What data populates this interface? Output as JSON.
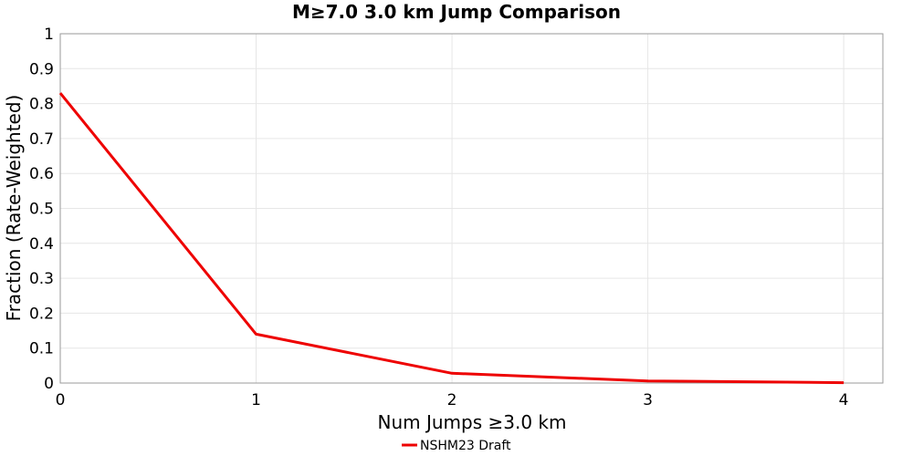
{
  "chart_data": {
    "type": "line",
    "title": "M≥7.0 3.0 km Jump Comparison",
    "xlabel": "Num Jumps ≥3.0 km",
    "ylabel": "Fraction (Rate-Weighted)",
    "xlim": [
      0,
      4.2
    ],
    "ylim": [
      0,
      1
    ],
    "x_ticks": [
      "0",
      "1",
      "2",
      "3",
      "4"
    ],
    "y_ticks": [
      "0",
      "0.1",
      "0.2",
      "0.3",
      "0.4",
      "0.5",
      "0.6",
      "0.7",
      "0.8",
      "0.9",
      "1"
    ],
    "grid": true,
    "legend_position": "bottom-center",
    "series": [
      {
        "name": "NSHM23 Draft",
        "color": "#ee0000",
        "x": [
          0,
          1,
          2,
          3,
          4
        ],
        "y": [
          0.83,
          0.14,
          0.028,
          0.006,
          0.001
        ]
      }
    ]
  }
}
